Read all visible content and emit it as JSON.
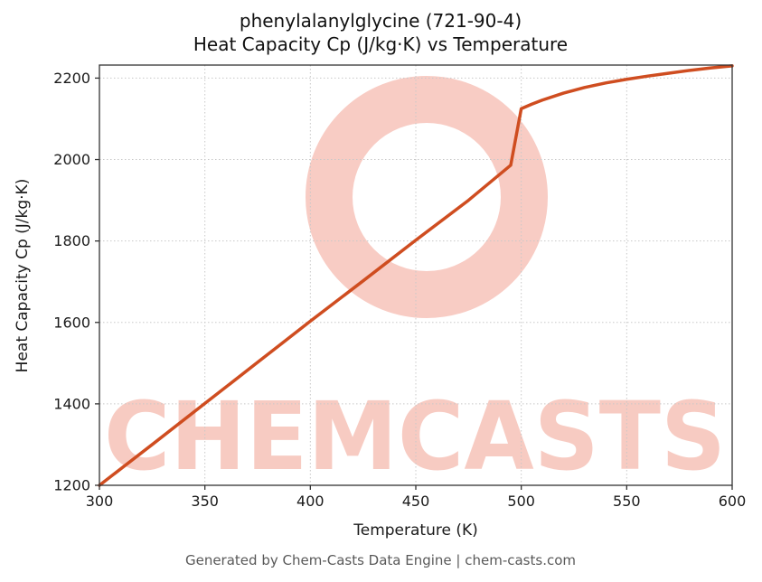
{
  "chart_data": {
    "type": "line",
    "title_line1": "phenylalanylglycine (721-90-4)",
    "title_line2": "Heat Capacity Cp (J/kg·K) vs Temperature",
    "xlabel": "Temperature (K)",
    "ylabel": "Heat Capacity Cp (J/kg·K)",
    "xlim": [
      300,
      600
    ],
    "ylim": [
      1200,
      2232
    ],
    "xticks": [
      300,
      350,
      400,
      450,
      500,
      550,
      600
    ],
    "yticks": [
      1200,
      1400,
      1600,
      1800,
      2000,
      2200
    ],
    "grid": true,
    "grid_style": "dotted",
    "legend": false,
    "line_color": "#cf4d20",
    "grid_color": "#c8c8c8",
    "frame_color": "#333333",
    "watermark_text": "CHEMCASTS",
    "watermark_color": "#e8573a",
    "watermark_opacity": 0.3,
    "footer": "Generated by Chem-Casts Data Engine | chem-casts.com",
    "series": [
      {
        "name": "Heat Capacity Cp",
        "x": [
          300,
          325,
          350,
          375,
          400,
          425,
          450,
          475,
          495,
          500,
          505,
          510,
          520,
          530,
          540,
          550,
          560,
          570,
          580,
          590,
          600
        ],
        "y": [
          1200,
          1300,
          1401,
          1502,
          1603,
          1702,
          1802,
          1900,
          1986,
          2125,
          2136,
          2146,
          2163,
          2177,
          2188,
          2197,
          2205,
          2212,
          2219,
          2225,
          2230
        ]
      }
    ]
  }
}
